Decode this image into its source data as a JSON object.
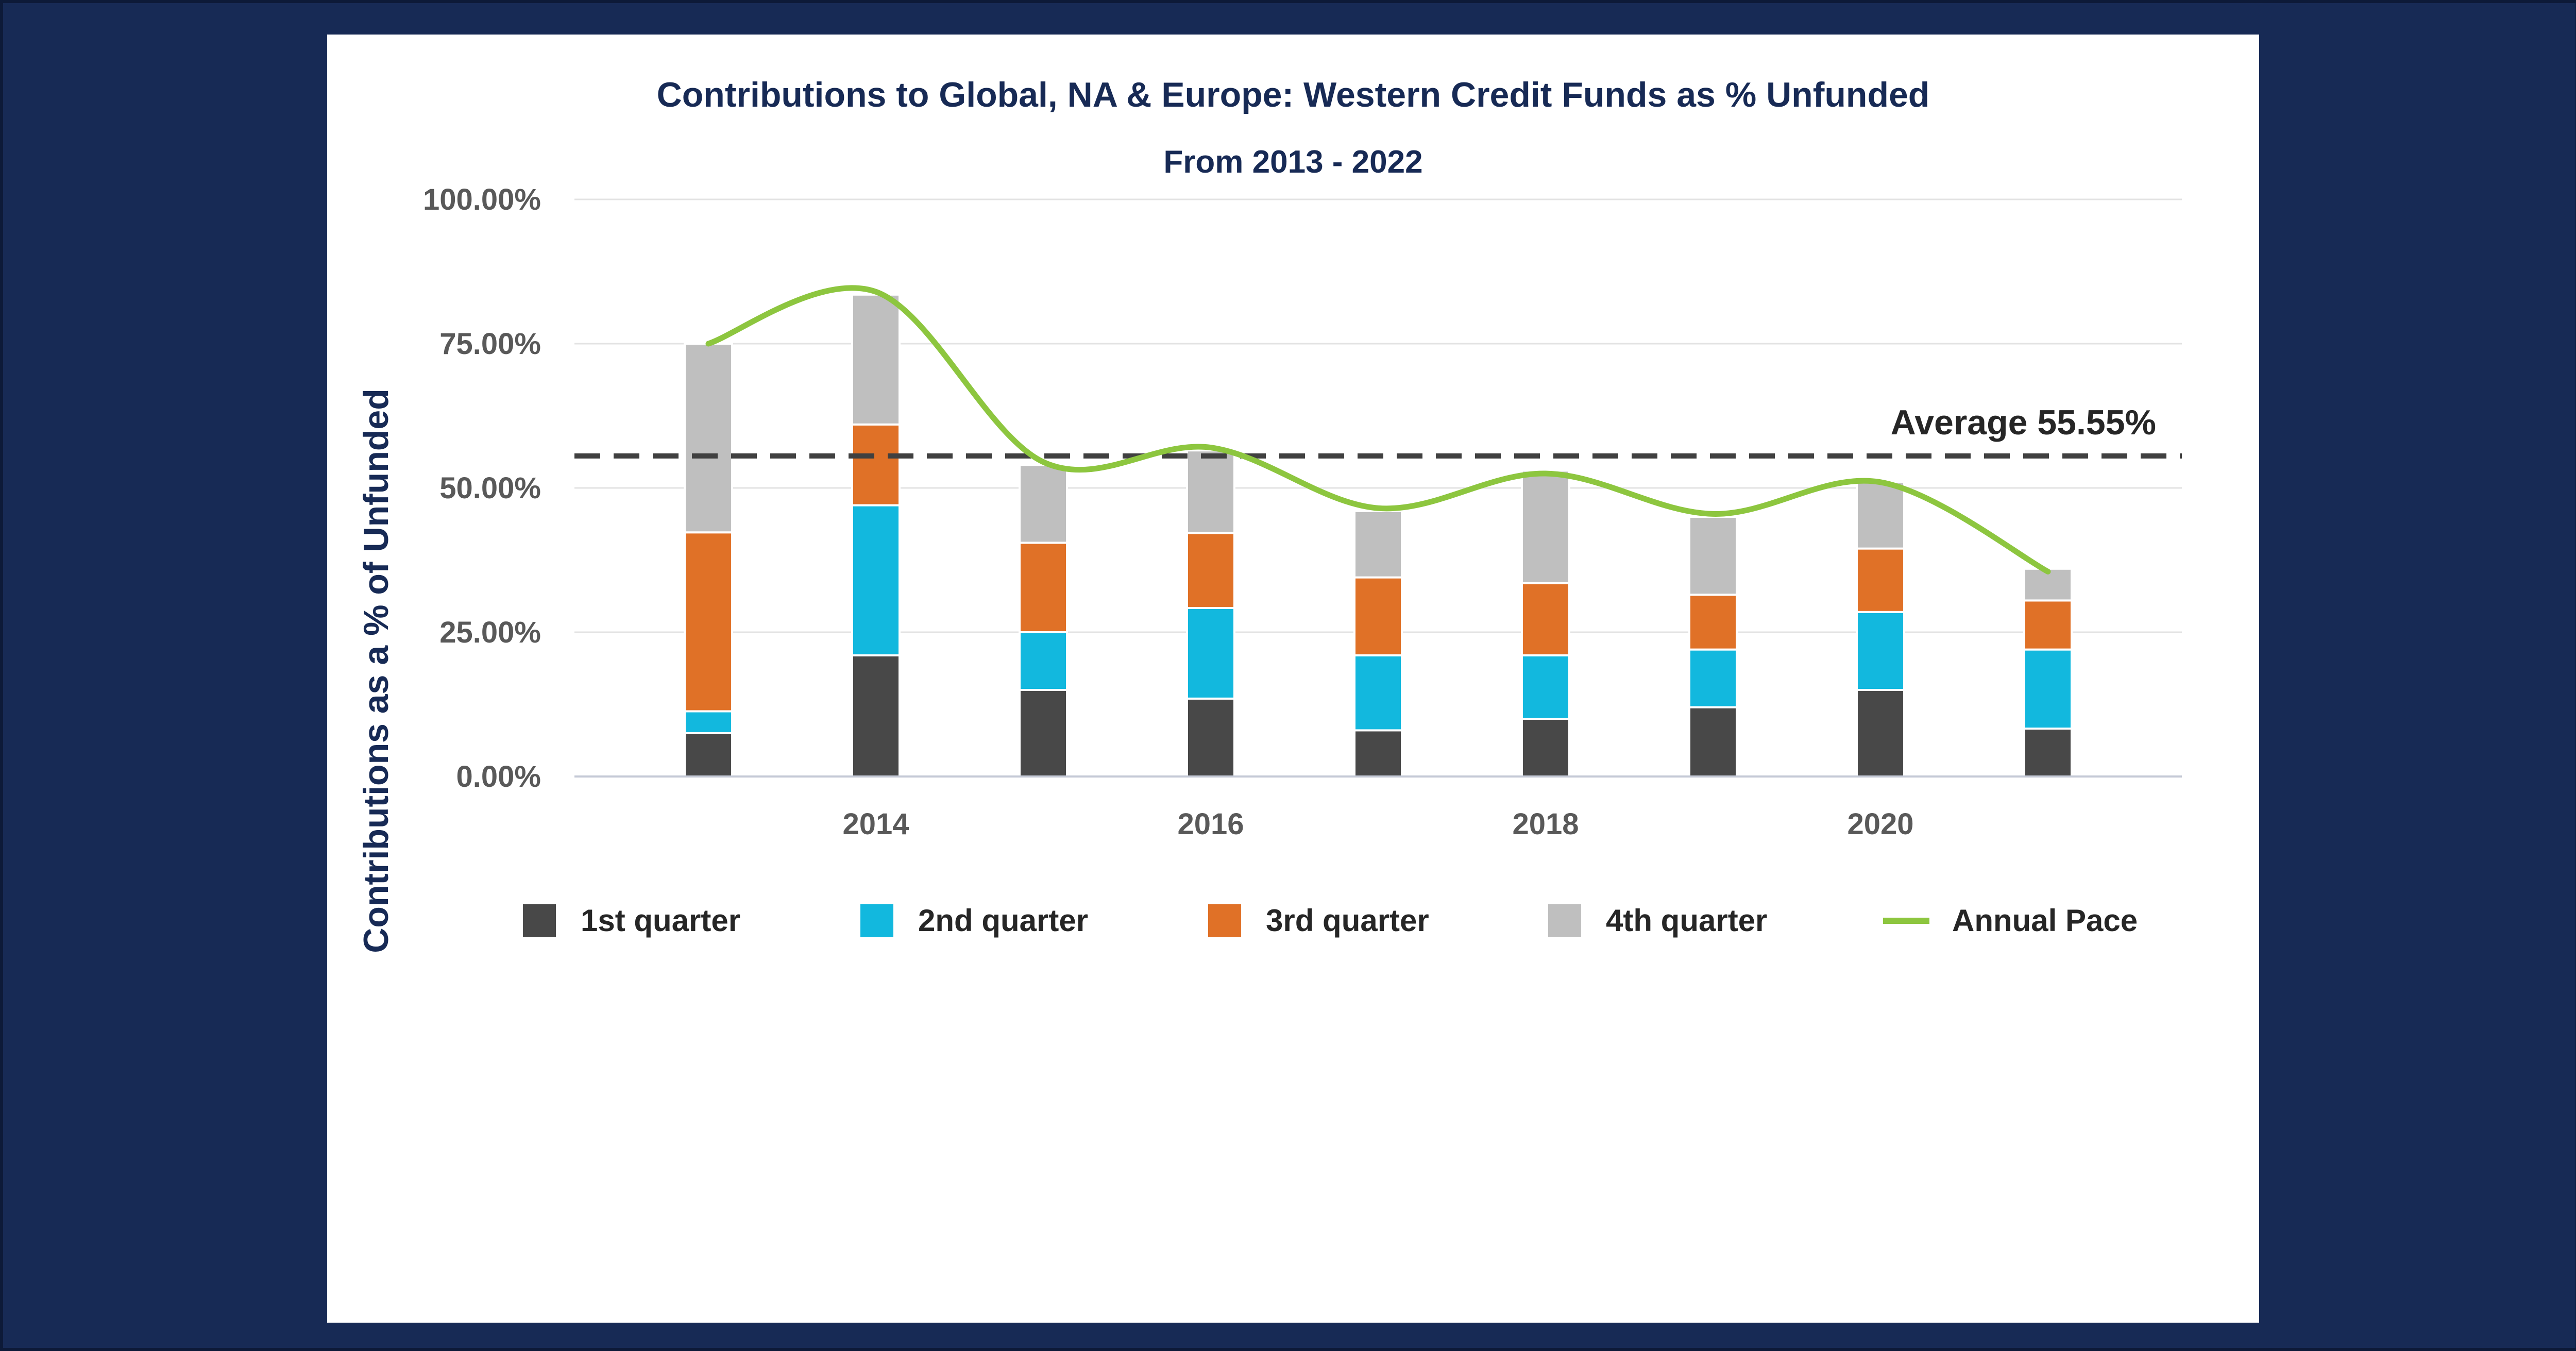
{
  "chart_data": {
    "type": "bar",
    "stacked": true,
    "title": "Contributions to Global, NA & Europe: Western Credit Funds as % Unfunded",
    "subtitle": "From 2013 - 2022",
    "xlabel": "",
    "ylabel": "Contributions as a % of Unfunded",
    "ylim": [
      0,
      100
    ],
    "yticks": [
      "0.00%",
      "25.00%",
      "50.00%",
      "75.00%",
      "100.00%"
    ],
    "x": [
      2013,
      2014,
      2015,
      2016,
      2017,
      2018,
      2019,
      2020,
      2021
    ],
    "xtick_labels": [
      "2014",
      "2016",
      "2018",
      "2020"
    ],
    "xtick_values": [
      2014,
      2016,
      2018,
      2020
    ],
    "xlim": [
      2012.2,
      2021.8
    ],
    "grid": true,
    "legend_position": "bottom",
    "series": [
      {
        "name": "1st quarter",
        "color": "#484848",
        "values": [
          7.5,
          21,
          15,
          13.5,
          8,
          10,
          12,
          15,
          8.3
        ]
      },
      {
        "name": "2nd quarter",
        "color": "#12b8de",
        "values": [
          3.8,
          26,
          10,
          15.7,
          13,
          11,
          10,
          13.5,
          13.7
        ]
      },
      {
        "name": "3rd quarter",
        "color": "#e07127",
        "values": [
          31,
          14,
          15.5,
          13,
          13.5,
          12.5,
          9.5,
          11,
          8.5
        ]
      },
      {
        "name": "4th quarter",
        "color": "#bfbfbf",
        "values": [
          32.7,
          22.5,
          13.5,
          14.3,
          11.5,
          19.5,
          13.5,
          11.5,
          5.5
        ]
      }
    ],
    "line": {
      "name": "Annual Pace",
      "color": "#8dc63f",
      "values": [
        75,
        84,
        54.5,
        57,
        46.5,
        52.5,
        45.5,
        51,
        35.5
      ]
    },
    "average": {
      "label": "Average 55.55%",
      "value": 55.55,
      "color": "#404040"
    }
  }
}
